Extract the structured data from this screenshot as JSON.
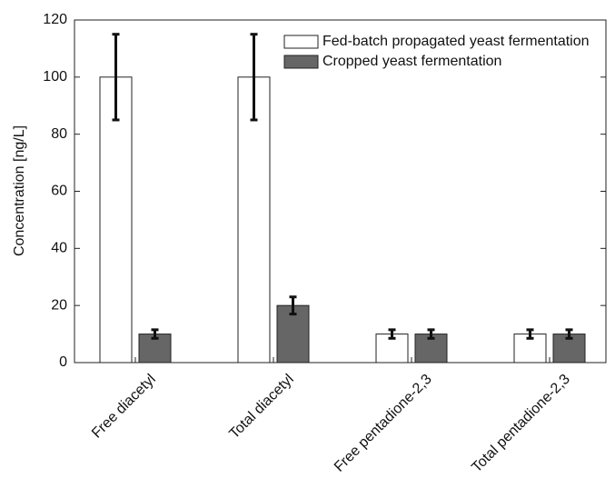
{
  "chart_data": {
    "type": "bar",
    "ylabel": "Concentration [ng/L]",
    "categories": [
      "Free diacetyl",
      "Total diacetyl",
      "Free pentadione-2,3",
      "Total pentadione-2,3"
    ],
    "series": [
      {
        "name": "Fed-batch propagated yeast fermentation",
        "color": "#ffffff",
        "values": [
          100,
          100,
          10,
          10
        ],
        "errors": [
          15,
          15,
          1.5,
          1.5
        ]
      },
      {
        "name": "Cropped yeast fermentation",
        "color": "#666666",
        "values": [
          10,
          20,
          10,
          10
        ],
        "errors": [
          1.5,
          3,
          1.5,
          1.5
        ]
      }
    ],
    "ylim": [
      0,
      120
    ],
    "yticks": [
      0,
      20,
      40,
      60,
      80,
      100,
      120
    ],
    "legend": "upper right",
    "grid": false
  }
}
